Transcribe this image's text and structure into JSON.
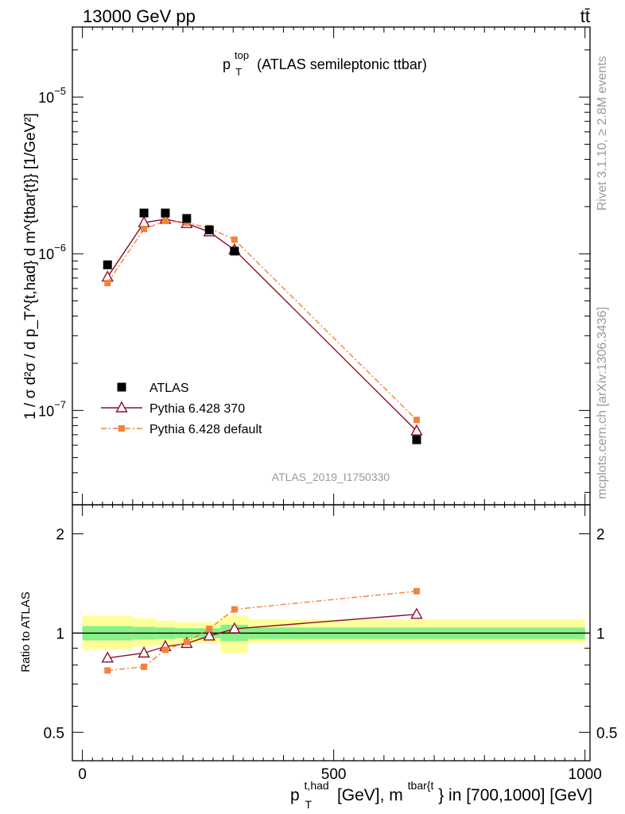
{
  "header": {
    "energy": "13000 GeV pp",
    "process": "tt̄"
  },
  "side_labels": {
    "rivet": "Rivet 3.1.10, ≥ 2.8M events",
    "mcplots": "mcplots.cern.ch [arXiv:1306.3436]"
  },
  "analysis_tag": "ATLAS_2019_I1750330",
  "colors": {
    "data": "#000000",
    "pythia370": "#8b0f2e",
    "pythia_default": "#f5813a",
    "band_inner": "#88f088",
    "band_outer": "#ffff99"
  },
  "chart_data": [
    {
      "type": "scatter",
      "panel": "main",
      "title_main": "p",
      "title_sup": "top",
      "title_sub": "T",
      "title_rest": " (ATLAS semileptonic ttbar)",
      "ylabel": "1 / σ d²σ / d p_T^{t,had} d m^{tbar{t}} [1/GeV²]",
      "yscale": "log",
      "ylim": [
        2.5e-08,
        2.8e-05
      ],
      "xlim": [
        -20,
        1010
      ],
      "ytick_labels": [
        {
          "base": "10",
          "exp": "−5",
          "value": 1e-05
        },
        {
          "base": "10",
          "exp": "−6",
          "value": 1e-06
        },
        {
          "base": "10",
          "exp": "−7",
          "value": 1e-07
        }
      ],
      "legend_position": "bottom-left",
      "series": [
        {
          "name": "ATLAS",
          "style": "square",
          "color": "#000000",
          "x": [
            50,
            122.5,
            165,
            207.5,
            252.5,
            302.5,
            665
          ],
          "y": [
            8.5e-07,
            1.82e-06,
            1.82e-06,
            1.68e-06,
            1.42e-06,
            1.04e-06,
            6.5e-08
          ]
        },
        {
          "name": "Pythia 6.428 370",
          "style": "triangle",
          "color": "#8b0f2e",
          "x": [
            50,
            122.5,
            165,
            207.5,
            252.5,
            302.5,
            665
          ],
          "y": [
            7.1e-07,
            1.58e-06,
            1.66e-06,
            1.56e-06,
            1.38e-06,
            1.06e-06,
            7.4e-08
          ]
        },
        {
          "name": "Pythia 6.428 default",
          "style": "small-square-dashdot",
          "color": "#f5813a",
          "x": [
            50,
            122.5,
            165,
            207.5,
            252.5,
            302.5,
            665
          ],
          "y": [
            6.5e-07,
            1.44e-06,
            1.62e-06,
            1.58e-06,
            1.46e-06,
            1.23e-06,
            8.7e-08
          ]
        }
      ]
    },
    {
      "type": "scatter",
      "panel": "ratio",
      "ylabel": "Ratio to ATLAS",
      "yscale": "log",
      "ylim": [
        0.41,
        2.45
      ],
      "xlim": [
        -20,
        1010
      ],
      "ytick_labels": [
        {
          "label": "2",
          "value": 2
        },
        {
          "label": "1",
          "value": 1
        },
        {
          "label": "0.5",
          "value": 0.5
        }
      ],
      "xtick_labels": [
        {
          "label": "0",
          "value": 0
        },
        {
          "label": "500",
          "value": 500
        },
        {
          "label": "1000",
          "value": 1000
        }
      ],
      "xlabel_parts": {
        "p": "p",
        "p_sup": "t,had",
        "p_sub": "T",
        "mid": " [GeV], m",
        "m_sup": "tbar{t",
        "rest": "} in [700,1000] [GeV]"
      },
      "bands": [
        {
          "x0": 0,
          "x1": 100,
          "inner": [
            0.95,
            1.05
          ],
          "outer": [
            0.89,
            1.13
          ]
        },
        {
          "x0": 100,
          "x1": 145,
          "inner": [
            0.955,
            1.045
          ],
          "outer": [
            0.91,
            1.11
          ]
        },
        {
          "x0": 145,
          "x1": 185,
          "inner": [
            0.96,
            1.04
          ],
          "outer": [
            0.92,
            1.09
          ]
        },
        {
          "x0": 185,
          "x1": 230,
          "inner": [
            0.965,
            1.035
          ],
          "outer": [
            0.93,
            1.08
          ]
        },
        {
          "x0": 230,
          "x1": 275,
          "inner": [
            0.965,
            1.035
          ],
          "outer": [
            0.93,
            1.08
          ]
        },
        {
          "x0": 275,
          "x1": 330,
          "inner": [
            0.945,
            1.06
          ],
          "outer": [
            0.87,
            1.13
          ]
        },
        {
          "x0": 330,
          "x1": 1000,
          "inner": [
            0.96,
            1.04
          ],
          "outer": [
            0.93,
            1.1
          ]
        }
      ],
      "series": [
        {
          "name": "Pythia 6.428 370",
          "style": "triangle",
          "color": "#8b0f2e",
          "x": [
            50,
            122.5,
            165,
            207.5,
            252.5,
            302.5,
            665
          ],
          "y": [
            0.84,
            0.87,
            0.91,
            0.93,
            0.98,
            1.03,
            1.14
          ]
        },
        {
          "name": "Pythia 6.428 default",
          "style": "small-square-dashdot",
          "color": "#f5813a",
          "x": [
            50,
            122.5,
            165,
            207.5,
            252.5,
            302.5,
            665
          ],
          "y": [
            0.77,
            0.79,
            0.89,
            0.94,
            1.03,
            1.18,
            1.34
          ]
        }
      ]
    }
  ]
}
